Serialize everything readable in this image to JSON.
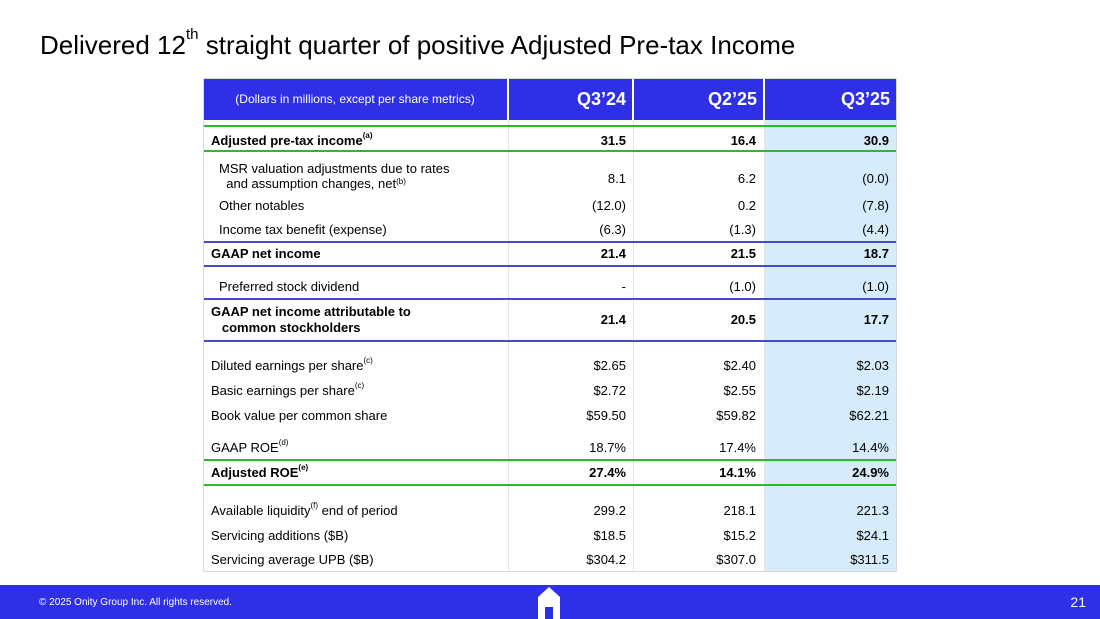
{
  "title": {
    "pre": "Delivered 12",
    "sup": "th",
    "post": " straight quarter of positive Adjusted Pre-tax Income"
  },
  "table": {
    "header": {
      "units": "(Dollars in millions, except per share metrics)",
      "cols": [
        "Q3’24",
        "Q2’25",
        "Q3’25"
      ]
    },
    "rows": [
      {
        "label": "Adjusted pre-tax income",
        "sup": "(a)",
        "values": [
          "31.5",
          "16.4",
          "30.9"
        ]
      },
      {
        "label_line1": "MSR valuation adjustments due to rates",
        "label_line2": "and assumption changes, net",
        "sup": "(b)",
        "values": [
          "8.1",
          "6.2",
          "(0.0)"
        ]
      },
      {
        "label": "Other notables",
        "values": [
          "(12.0)",
          "0.2",
          "(7.8)"
        ]
      },
      {
        "label": "Income tax benefit (expense)",
        "values": [
          "(6.3)",
          "(1.3)",
          "(4.4)"
        ]
      },
      {
        "label": "GAAP net income",
        "values": [
          "21.4",
          "21.5",
          "18.7"
        ]
      },
      {
        "label": "Preferred stock dividend",
        "values": [
          "-",
          "(1.0)",
          "(1.0)"
        ]
      },
      {
        "label_line1": "GAAP net income attributable to",
        "label_line2": "common stockholders",
        "values": [
          "21.4",
          "20.5",
          "17.7"
        ]
      },
      {
        "label": "Diluted earnings per share",
        "sup": "(c)",
        "values": [
          "$2.65",
          "$2.40",
          "$2.03"
        ]
      },
      {
        "label": "Basic earnings per share",
        "sup": "(c)",
        "values": [
          "$2.72",
          "$2.55",
          "$2.19"
        ]
      },
      {
        "label": "Book value per common share",
        "values": [
          "$59.50",
          "$59.82",
          "$62.21"
        ]
      },
      {
        "label": "GAAP ROE",
        "sup": "(d)",
        "values": [
          "18.7%",
          "17.4%",
          "14.4%"
        ]
      },
      {
        "label": "Adjusted ROE",
        "sup": "(e)",
        "values": [
          "27.4%",
          "14.1%",
          "24.9%"
        ]
      },
      {
        "label": "Available liquidity",
        "sup": "(f)",
        "label_post": " end of period",
        "values": [
          "299.2",
          "218.1",
          "221.3"
        ]
      },
      {
        "label": "Servicing additions ($B)",
        "values": [
          "$18.5",
          "$15.2",
          "$24.1"
        ]
      },
      {
        "label": "Servicing average UPB ($B)",
        "values": [
          "$304.2",
          "$307.0",
          "$311.5"
        ]
      }
    ]
  },
  "footer": {
    "copyright": "© 2025 Onity Group Inc. All rights reserved.",
    "page_number": "21"
  },
  "colors": {
    "brand_blue": "#2f2fe6",
    "highlight": "#d6ecfa",
    "green_rule": "#2eb82e"
  },
  "icons": {
    "logo": "onity-house-logo"
  }
}
